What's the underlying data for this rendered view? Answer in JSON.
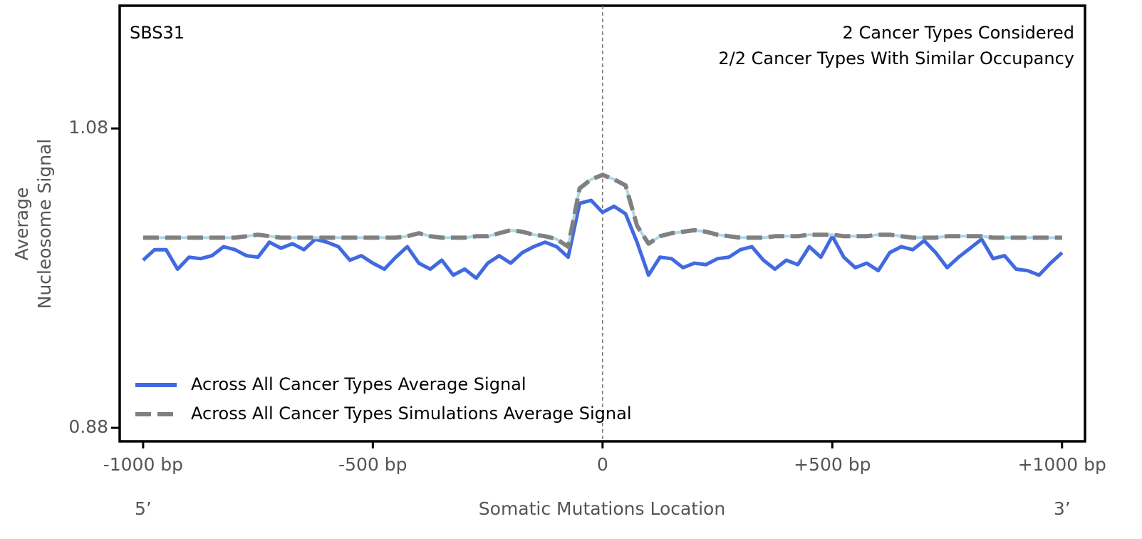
{
  "chart_data": {
    "type": "line",
    "annotations": [
      "SBS31",
      "2 Cancer Types Considered",
      "2/2 Cancer Types With Similar Occupancy"
    ],
    "xlabel": "Somatic Mutations Location",
    "ylabel": [
      "Average",
      "Nucleosome Signal"
    ],
    "x_end_labels": [
      "5’",
      "3’"
    ],
    "x": [
      -1000,
      -975,
      -950,
      -925,
      -900,
      -875,
      -850,
      -825,
      -800,
      -775,
      -750,
      -725,
      -700,
      -675,
      -650,
      -625,
      -600,
      -575,
      -550,
      -525,
      -500,
      -475,
      -450,
      -425,
      -400,
      -375,
      -350,
      -325,
      -300,
      -275,
      -250,
      -225,
      -200,
      -175,
      -150,
      -125,
      -100,
      -75,
      -50,
      -25,
      0,
      25,
      50,
      75,
      100,
      125,
      150,
      175,
      200,
      225,
      250,
      275,
      300,
      325,
      350,
      375,
      400,
      425,
      450,
      475,
      500,
      525,
      550,
      575,
      600,
      625,
      650,
      675,
      700,
      725,
      750,
      775,
      800,
      825,
      850,
      875,
      900,
      925,
      950,
      975,
      1000
    ],
    "series": [
      {
        "name": "Across All Cancer Types Average Signal",
        "color": "#4169e1",
        "dashed": false,
        "values": [
          0.992,
          0.999,
          0.999,
          0.986,
          0.994,
          0.993,
          0.995,
          1.001,
          0.999,
          0.995,
          0.994,
          1.004,
          1.0,
          1.003,
          0.999,
          1.006,
          1.004,
          1.001,
          0.992,
          0.995,
          0.99,
          0.986,
          0.994,
          1.001,
          0.99,
          0.986,
          0.992,
          0.982,
          0.986,
          0.98,
          0.99,
          0.995,
          0.99,
          0.997,
          1.001,
          1.004,
          1.001,
          0.994,
          1.03,
          1.032,
          1.024,
          1.028,
          1.023,
          1.004,
          0.982,
          0.994,
          0.993,
          0.987,
          0.99,
          0.989,
          0.993,
          0.994,
          0.999,
          1.001,
          0.992,
          0.986,
          0.992,
          0.989,
          1.001,
          0.994,
          1.008,
          0.994,
          0.987,
          0.99,
          0.985,
          0.997,
          1.001,
          0.999,
          1.005,
          0.997,
          0.987,
          0.994,
          1.0,
          1.006,
          0.993,
          0.995,
          0.986,
          0.985,
          0.982,
          0.99,
          0.997
        ]
      },
      {
        "name": "Across All Cancer Types Simulations Average Signal",
        "color": "#808080",
        "dashed": true,
        "values": [
          1.007,
          1.007,
          1.007,
          1.007,
          1.007,
          1.007,
          1.007,
          1.007,
          1.007,
          1.008,
          1.009,
          1.008,
          1.007,
          1.007,
          1.007,
          1.007,
          1.007,
          1.007,
          1.007,
          1.007,
          1.007,
          1.007,
          1.007,
          1.008,
          1.01,
          1.008,
          1.007,
          1.007,
          1.007,
          1.008,
          1.008,
          1.01,
          1.012,
          1.011,
          1.009,
          1.008,
          1.006,
          1.001,
          1.04,
          1.046,
          1.049,
          1.046,
          1.042,
          1.015,
          1.003,
          1.008,
          1.01,
          1.011,
          1.012,
          1.011,
          1.009,
          1.008,
          1.007,
          1.007,
          1.007,
          1.008,
          1.008,
          1.008,
          1.009,
          1.009,
          1.009,
          1.008,
          1.008,
          1.008,
          1.009,
          1.009,
          1.008,
          1.007,
          1.007,
          1.007,
          1.008,
          1.008,
          1.008,
          1.008,
          1.007,
          1.007,
          1.007,
          1.007,
          1.007,
          1.007,
          1.007
        ]
      }
    ],
    "xlim": [
      -1051,
      1050
    ],
    "xticks": [
      {
        "value": -1000,
        "label": "-1000 bp"
      },
      {
        "value": -500,
        "label": "-500 bp"
      },
      0,
      {
        "value": 500,
        "label": "+500 bp"
      },
      {
        "value": 1000,
        "label": "+1000 bp"
      }
    ],
    "ylim": [
      0.871,
      1.162
    ],
    "yticks": [
      0.88,
      1.08
    ],
    "legend": "lower left"
  }
}
